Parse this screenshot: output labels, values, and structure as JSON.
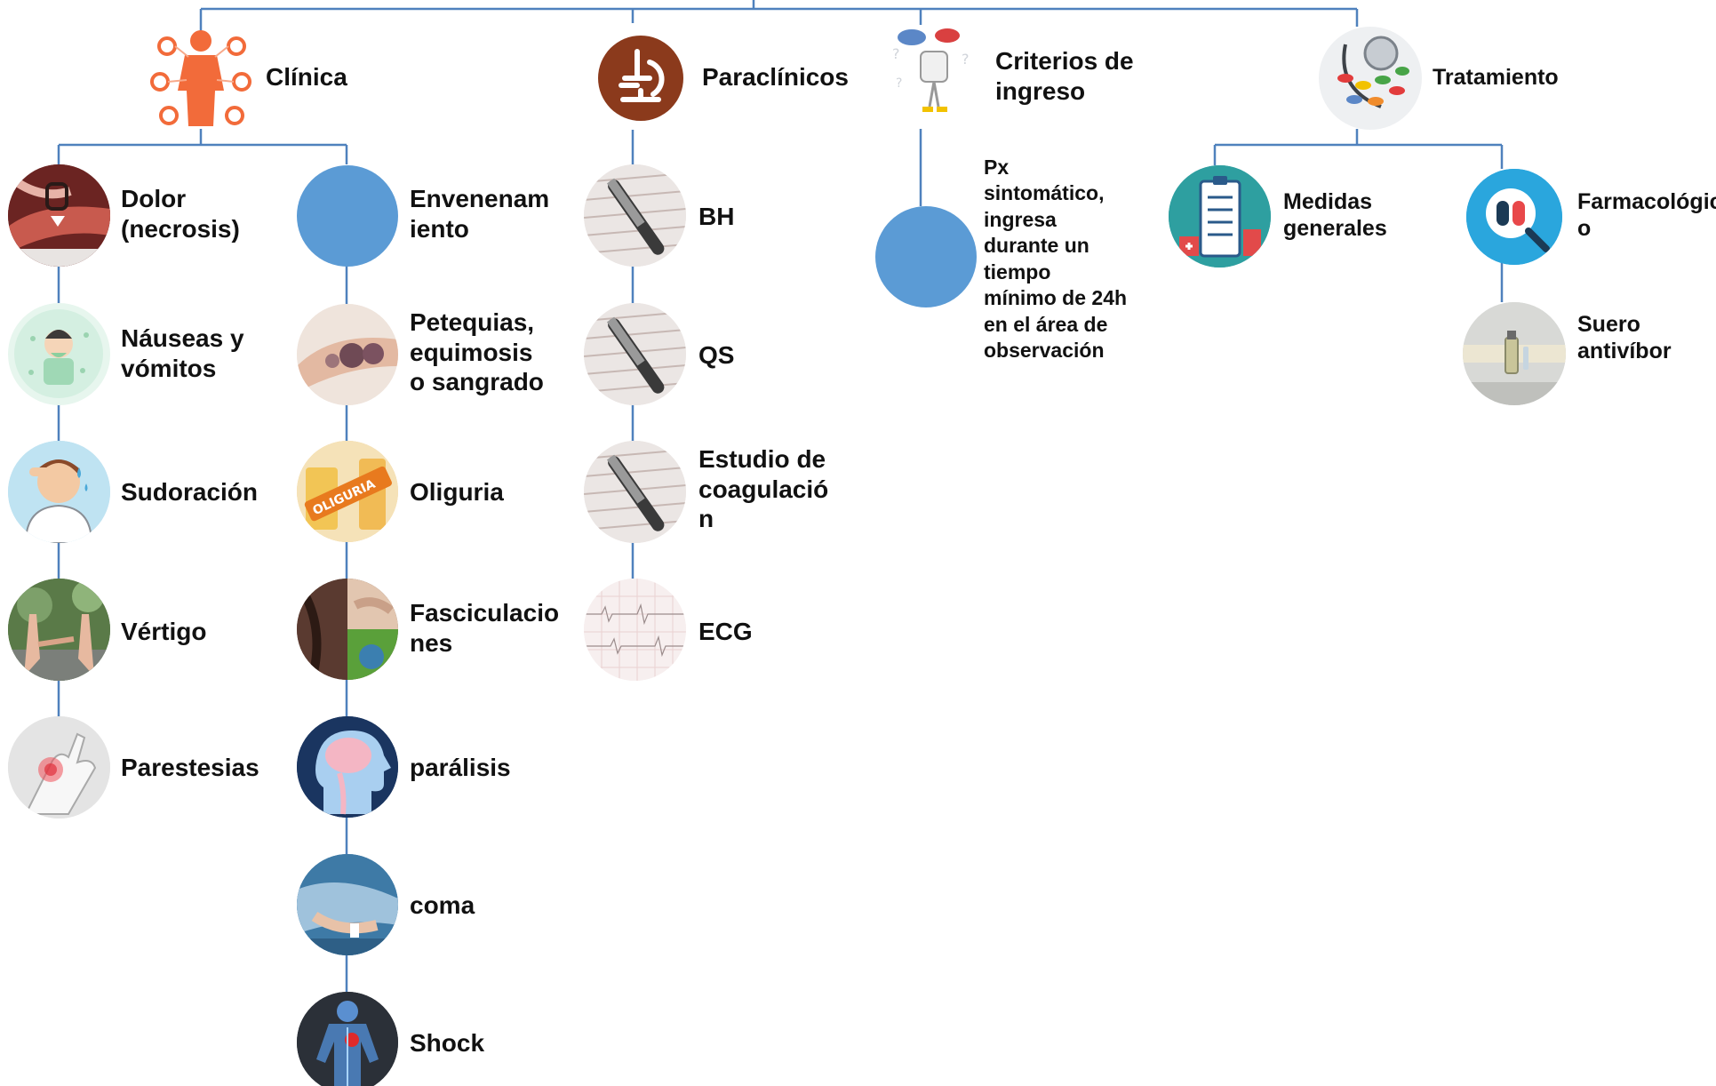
{
  "colors": {
    "connector": "#4f81bd",
    "node_blue": "#5b9bd5",
    "clinica_icon": "#f26b3a",
    "paraclinicos_icon": "#8b3a1c",
    "farmaco_icon": "#29a8e0",
    "medidas_icon": "#2a9d9d"
  },
  "categories": {
    "clinica": {
      "label": "Clínica",
      "icon": "body-organs-icon"
    },
    "paraclinicos": {
      "label": "Paraclínicos",
      "icon": "microscope-icon"
    },
    "criterios": {
      "label_lines": [
        "Criterios de",
        "ingreso"
      ],
      "icon": "thinking-person-icon"
    },
    "tratamiento": {
      "label": "Tratamiento",
      "icon": "medicine-pills-icon"
    }
  },
  "clinica_left": [
    {
      "lines": [
        "Dolor",
        "(necrosis)"
      ],
      "icon": "necrosis-arm-icon"
    },
    {
      "lines": [
        "Náuseas y",
        "vómitos"
      ],
      "icon": "nausea-icon"
    },
    {
      "lines": [
        "Sudoración"
      ],
      "icon": "sweating-person-icon"
    },
    {
      "lines": [
        "Vértigo"
      ],
      "icon": "dizzy-hands-icon"
    },
    {
      "lines": [
        "Parestesias"
      ],
      "icon": "wrist-pain-icon"
    }
  ],
  "clinica_right": [
    {
      "lines": [
        "Envenenam",
        "iento"
      ],
      "icon": "blank-circle"
    },
    {
      "lines": [
        "Petequias,",
        "equimosis",
        "o sangrado"
      ],
      "icon": "bruised-finger-icon"
    },
    {
      "lines": [
        "Oliguria"
      ],
      "icon": "urine-sample-icon"
    },
    {
      "lines": [
        "Fasciculacio",
        "nes"
      ],
      "icon": "muscle-twitch-icon"
    },
    {
      "lines": [
        "parálisis"
      ],
      "icon": "brain-head-icon"
    },
    {
      "lines": [
        "coma"
      ],
      "icon": "hospital-patient-icon"
    },
    {
      "lines": [
        "Shock"
      ],
      "icon": "body-circulation-icon"
    }
  ],
  "paraclinicos_items": [
    {
      "lines": [
        "BH"
      ],
      "icon": "lab-report-icon"
    },
    {
      "lines": [
        "QS"
      ],
      "icon": "lab-report-icon"
    },
    {
      "lines": [
        "Estudio de",
        "coagulació",
        "n"
      ],
      "icon": "lab-report-icon"
    },
    {
      "lines": [
        "ECG"
      ],
      "icon": "ecg-paper-icon"
    }
  ],
  "criterios_item": {
    "lines": [
      "Px",
      "sintomático,",
      "ingresa",
      "durante un",
      "tiempo",
      "mínimo de 24h",
      "en el área de",
      "observación"
    ],
    "icon": "blank-circle"
  },
  "tratamiento_items": [
    {
      "lines": [
        "Medidas",
        "generales"
      ],
      "icon": "hospital-clipboard-icon"
    },
    {
      "lines": [
        "Farmacológic",
        "o"
      ],
      "icon": "pill-magnifier-icon"
    }
  ],
  "farmaco_child": {
    "lines": [
      "Suero",
      "antivíbor"
    ],
    "icon": "antivenom-vial-icon"
  }
}
